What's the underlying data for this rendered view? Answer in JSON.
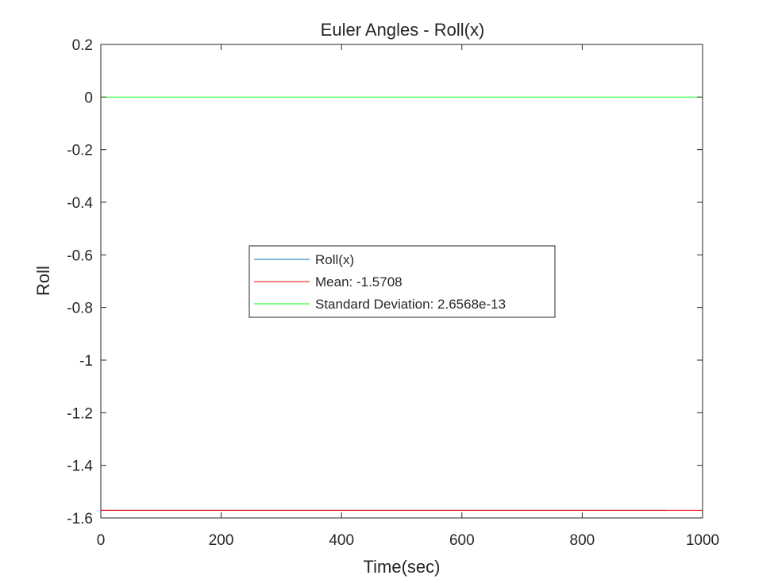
{
  "chart_data": {
    "type": "line",
    "title": "Euler Angles - Roll(x)",
    "xlabel": "Time(sec)",
    "ylabel": "Roll",
    "xlim": [
      0,
      1000
    ],
    "ylim": [
      -1.6,
      0.2
    ],
    "xticks": [
      0,
      200,
      400,
      600,
      800,
      1000
    ],
    "xtick_labels": [
      "0",
      "200",
      "400",
      "600",
      "800",
      "1000"
    ],
    "yticks": [
      0.2,
      0,
      -0.2,
      -0.4,
      -0.6,
      -0.8,
      -1,
      -1.2,
      -1.4,
      -1.6
    ],
    "ytick_labels": [
      "0.2",
      "0",
      "-0.2",
      "-0.4",
      "-0.6",
      "-0.8",
      "-1",
      "-1.2",
      "-1.4",
      "-1.6"
    ],
    "grid": false,
    "legend_position": "center",
    "series": [
      {
        "name": "Roll(x)",
        "color": "#0072BD",
        "x": [
          0,
          940
        ],
        "y": [
          -1.5708,
          -1.5708
        ]
      },
      {
        "name": "Mean: -1.5708",
        "color": "#FF0000",
        "x": [
          0,
          1000
        ],
        "y": [
          -1.5708,
          -1.5708
        ]
      },
      {
        "name": "Standard Deviation: 2.6568e-13",
        "color": "#00FF00",
        "x": [
          0,
          1000
        ],
        "y": [
          0,
          0
        ]
      }
    ]
  }
}
